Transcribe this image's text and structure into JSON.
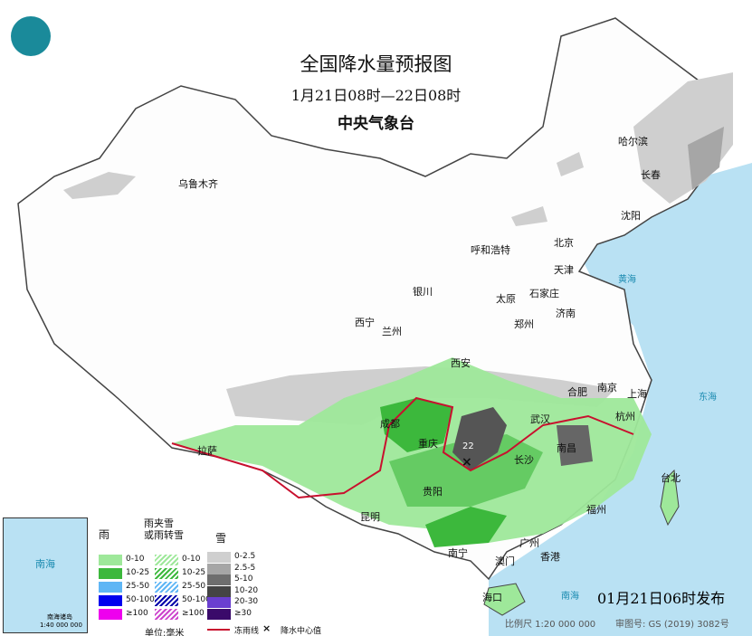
{
  "header": {
    "title": "全国降水量预报图",
    "period": "1月21日08时—22日08时",
    "agency": "中央气象台"
  },
  "cities": [
    {
      "name": "乌鲁木齐"
    },
    {
      "name": "哈尔滨"
    },
    {
      "name": "长春"
    },
    {
      "name": "沈阳"
    },
    {
      "name": "北京"
    },
    {
      "name": "天津"
    },
    {
      "name": "呼和浩特"
    },
    {
      "name": "银川"
    },
    {
      "name": "太原"
    },
    {
      "name": "石家庄"
    },
    {
      "name": "济南"
    },
    {
      "name": "西宁"
    },
    {
      "name": "兰州"
    },
    {
      "name": "郑州"
    },
    {
      "name": "西安"
    },
    {
      "name": "合肥"
    },
    {
      "name": "南京"
    },
    {
      "name": "上海"
    },
    {
      "name": "武汉"
    },
    {
      "name": "杭州"
    },
    {
      "name": "成都"
    },
    {
      "name": "重庆"
    },
    {
      "name": "南昌"
    },
    {
      "name": "长沙"
    },
    {
      "name": "拉萨"
    },
    {
      "name": "贵阳"
    },
    {
      "name": "福州"
    },
    {
      "name": "台北"
    },
    {
      "name": "昆明"
    },
    {
      "name": "南宁"
    },
    {
      "name": "广州"
    },
    {
      "name": "香港"
    },
    {
      "name": "澳门"
    },
    {
      "name": "海口"
    }
  ],
  "center_value": "22",
  "legend": {
    "rain": {
      "title": "雨",
      "items": [
        {
          "label": "0-10",
          "color": "#9ee89a"
        },
        {
          "label": "10-25",
          "color": "#3cb83c"
        },
        {
          "label": "25-50",
          "color": "#5fb6f5"
        },
        {
          "label": "50-100",
          "color": "#0000ee"
        },
        {
          "label": "≥100",
          "color": "#ee00ee"
        }
      ]
    },
    "mixed": {
      "title_line1": "雨夹雪",
      "title_line2": "或雨转雪",
      "items": [
        {
          "label": "0-10",
          "color": "#9ee89a"
        },
        {
          "label": "10-25",
          "color": "#3cb83c"
        },
        {
          "label": "25-50",
          "color": "#5fb6f5"
        },
        {
          "label": "50-100",
          "color": "#0000aa"
        },
        {
          "label": "≥100",
          "color": "#cc44cc"
        }
      ]
    },
    "snow": {
      "title": "雪",
      "items": [
        {
          "label": "0-2.5",
          "color": "#cfcfcf"
        },
        {
          "label": "2.5-5",
          "color": "#a6a6a6"
        },
        {
          "label": "5-10",
          "color": "#6e6e6e"
        },
        {
          "label": "10-20",
          "color": "#444444"
        },
        {
          "label": "20-30",
          "color": "#6a3fd0"
        },
        {
          "label": "≥30",
          "color": "#3a0a6a"
        }
      ]
    },
    "unit": "单位:毫米",
    "line_label": "冻雨线",
    "center_label": "降水中心值"
  },
  "inset": {
    "sea": "南海",
    "islands": "南海诸岛",
    "scale": "1:40 000 000"
  },
  "footer": {
    "issued": "01月21日06时发布",
    "scale": "比例尺 1:20 000 000",
    "map_no": "审图号: GS (2019) 3082号"
  },
  "sea_labels": [
    "黄海",
    "东海",
    "南海"
  ]
}
